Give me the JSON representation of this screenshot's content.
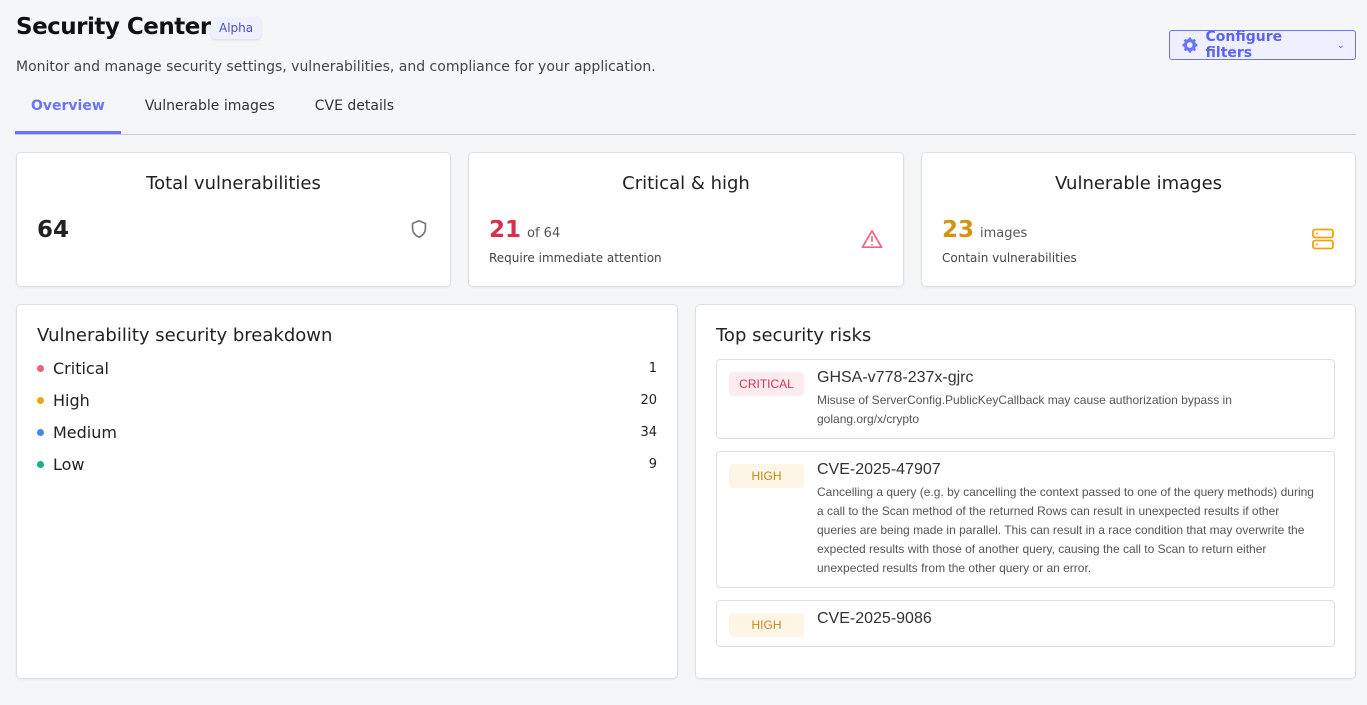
{
  "header": {
    "title": "Security Center",
    "badge": "Alpha",
    "subtitle": "Monitor and manage security settings, vulnerabilities, and compliance for your application.",
    "configure_label": "Configure filters"
  },
  "tabs": [
    {
      "label": "Overview",
      "active": true
    },
    {
      "label": "Vulnerable images"
    },
    {
      "label": "CVE details"
    }
  ],
  "stats": {
    "total": {
      "title": "Total vulnerabilities",
      "value": "64",
      "icon": "shield-icon"
    },
    "critical_high": {
      "title": "Critical & high",
      "value": "21",
      "of": "of 64",
      "sub": "Require immediate attention",
      "icon": "warning-icon",
      "color": "#d6304d"
    },
    "images": {
      "title": "Vulnerable images",
      "value": "23",
      "unit": "images",
      "sub": "Contain vulnerabilities",
      "icon": "server-icon",
      "color": "#d4940f"
    }
  },
  "breakdown": {
    "title": "Vulnerability security breakdown",
    "items": [
      {
        "label": "Critical",
        "count": "1",
        "color": "#f0607a"
      },
      {
        "label": "High",
        "count": "20",
        "color": "#f0a30a"
      },
      {
        "label": "Medium",
        "count": "34",
        "color": "#3b8cf0"
      },
      {
        "label": "Low",
        "count": "9",
        "color": "#16b08a"
      }
    ]
  },
  "risks": {
    "title": "Top security risks",
    "items": [
      {
        "severity": "CRITICAL",
        "id": "GHSA-v778-237x-gjrc",
        "desc": "Misuse of ServerConfig.PublicKeyCallback may cause authorization bypass in golang.org/x/crypto"
      },
      {
        "severity": "HIGH",
        "id": "CVE-2025-47907",
        "desc": "Cancelling a query (e.g. by cancelling the context passed to one of the query methods) during a call to the Scan method of the returned Rows can result in unexpected results if other queries are being made in parallel. This can result in a race condition that may overwrite the expected results with those of another query, causing the call to Scan to return either unexpected results from the other query or an error."
      },
      {
        "severity": "HIGH",
        "id": "CVE-2025-9086",
        "desc": ""
      }
    ]
  }
}
